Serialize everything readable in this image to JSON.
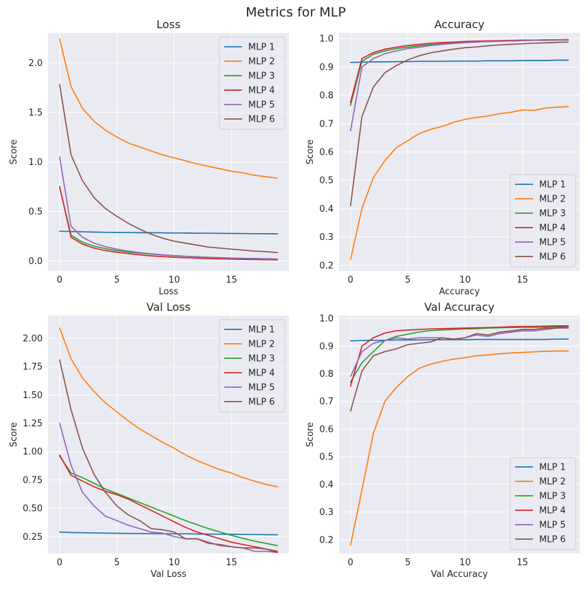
{
  "suptitle": "Metrics for MLP",
  "colors": {
    "plot_bg": "#eaeaf2",
    "grid": "#ffffff",
    "series": [
      "#1f77b4",
      "#ff7f0e",
      "#2ca02c",
      "#d62728",
      "#9467bd",
      "#8c564b"
    ]
  },
  "chart_data": [
    {
      "type": "line",
      "title": "Loss",
      "xlabel": "Loss",
      "ylabel": "Score",
      "xlim": [
        -1,
        20
      ],
      "ylim": [
        -0.1,
        2.3
      ],
      "xticks": [
        0,
        5,
        10,
        15
      ],
      "yticks": [
        0.0,
        0.5,
        1.0,
        1.5,
        2.0
      ],
      "ytick_labels": [
        "0.0",
        "0.5",
        "1.0",
        "1.5",
        "2.0"
      ],
      "legend_loc": "top-right",
      "x": [
        0,
        1,
        2,
        3,
        4,
        5,
        6,
        7,
        8,
        9,
        10,
        11,
        12,
        13,
        14,
        15,
        16,
        17,
        18,
        19
      ],
      "series": [
        {
          "name": "MLP 1",
          "values": [
            0.3,
            0.298,
            0.295,
            0.292,
            0.29,
            0.288,
            0.287,
            0.286,
            0.285,
            0.284,
            0.283,
            0.282,
            0.281,
            0.28,
            0.279,
            0.278,
            0.277,
            0.276,
            0.275,
            0.274
          ]
        },
        {
          "name": "MLP 2",
          "values": [
            2.24,
            1.76,
            1.54,
            1.41,
            1.32,
            1.25,
            1.19,
            1.15,
            1.11,
            1.07,
            1.04,
            1.01,
            0.98,
            0.955,
            0.93,
            0.905,
            0.89,
            0.865,
            0.85,
            0.835
          ]
        },
        {
          "name": "MLP 3",
          "values": [
            0.75,
            0.26,
            0.19,
            0.15,
            0.125,
            0.105,
            0.09,
            0.08,
            0.07,
            0.06,
            0.053,
            0.047,
            0.042,
            0.037,
            0.033,
            0.03,
            0.027,
            0.025,
            0.022,
            0.02
          ]
        },
        {
          "name": "MLP 4",
          "values": [
            0.75,
            0.24,
            0.17,
            0.13,
            0.105,
            0.088,
            0.075,
            0.062,
            0.052,
            0.044,
            0.038,
            0.033,
            0.029,
            0.025,
            0.022,
            0.019,
            0.017,
            0.015,
            0.013,
            0.012
          ]
        },
        {
          "name": "MLP 5",
          "values": [
            1.05,
            0.35,
            0.24,
            0.18,
            0.145,
            0.12,
            0.1,
            0.085,
            0.073,
            0.063,
            0.055,
            0.048,
            0.042,
            0.037,
            0.033,
            0.029,
            0.026,
            0.024,
            0.022,
            0.02
          ]
        },
        {
          "name": "MLP 6",
          "values": [
            1.78,
            1.07,
            0.81,
            0.64,
            0.53,
            0.45,
            0.38,
            0.32,
            0.27,
            0.23,
            0.2,
            0.18,
            0.16,
            0.14,
            0.13,
            0.12,
            0.11,
            0.1,
            0.095,
            0.085
          ]
        }
      ]
    },
    {
      "type": "line",
      "title": "Accuracy",
      "xlabel": "Accuracy",
      "ylabel": "Score",
      "xlim": [
        -1,
        20
      ],
      "ylim": [
        0.18,
        1.02
      ],
      "xticks": [
        0,
        5,
        10,
        15
      ],
      "yticks": [
        0.2,
        0.3,
        0.4,
        0.5,
        0.6,
        0.7,
        0.8,
        0.9,
        1.0
      ],
      "ytick_labels": [
        "0.2",
        "0.3",
        "0.4",
        "0.5",
        "0.6",
        "0.7",
        "0.8",
        "0.9",
        "1.0"
      ],
      "legend_loc": "bottom-right",
      "x": [
        0,
        1,
        2,
        3,
        4,
        5,
        6,
        7,
        8,
        9,
        10,
        11,
        12,
        13,
        14,
        15,
        16,
        17,
        18,
        19
      ],
      "series": [
        {
          "name": "MLP 1",
          "values": [
            0.916,
            0.917,
            0.918,
            0.918,
            0.919,
            0.919,
            0.92,
            0.92,
            0.92,
            0.921,
            0.921,
            0.921,
            0.922,
            0.922,
            0.922,
            0.923,
            0.923,
            0.923,
            0.924,
            0.924
          ]
        },
        {
          "name": "MLP 2",
          "values": [
            0.22,
            0.4,
            0.51,
            0.57,
            0.615,
            0.64,
            0.665,
            0.68,
            0.69,
            0.705,
            0.715,
            0.722,
            0.727,
            0.735,
            0.74,
            0.748,
            0.747,
            0.755,
            0.758,
            0.76
          ]
        },
        {
          "name": "MLP 3",
          "values": [
            0.765,
            0.92,
            0.945,
            0.957,
            0.965,
            0.97,
            0.975,
            0.979,
            0.982,
            0.985,
            0.987,
            0.989,
            0.99,
            0.991,
            0.992,
            0.993,
            0.994,
            0.994,
            0.995,
            0.995
          ]
        },
        {
          "name": "MLP 4",
          "values": [
            0.775,
            0.93,
            0.951,
            0.963,
            0.97,
            0.976,
            0.98,
            0.984,
            0.986,
            0.988,
            0.99,
            0.991,
            0.992,
            0.993,
            0.994,
            0.995,
            0.995,
            0.996,
            0.996,
            0.997
          ]
        },
        {
          "name": "MLP 5",
          "values": [
            0.675,
            0.9,
            0.93,
            0.947,
            0.957,
            0.965,
            0.97,
            0.976,
            0.98,
            0.983,
            0.986,
            0.988,
            0.99,
            0.991,
            0.992,
            0.993,
            0.994,
            0.995,
            0.995,
            0.996
          ]
        },
        {
          "name": "MLP 6",
          "values": [
            0.41,
            0.725,
            0.83,
            0.88,
            0.905,
            0.925,
            0.94,
            0.95,
            0.957,
            0.963,
            0.968,
            0.971,
            0.975,
            0.978,
            0.98,
            0.982,
            0.984,
            0.985,
            0.987,
            0.988
          ]
        }
      ]
    },
    {
      "type": "line",
      "title": "Val Loss",
      "xlabel": "Val Loss",
      "ylabel": "Score",
      "xlim": [
        -1,
        20
      ],
      "ylim": [
        0.1,
        2.2
      ],
      "xticks": [
        0,
        5,
        10,
        15
      ],
      "yticks": [
        0.25,
        0.5,
        0.75,
        1.0,
        1.25,
        1.5,
        1.75,
        2.0
      ],
      "ytick_labels": [
        "0.25",
        "0.50",
        "0.75",
        "1.00",
        "1.25",
        "1.50",
        "1.75",
        "2.00"
      ],
      "legend_loc": "top-right",
      "x": [
        0,
        1,
        2,
        3,
        4,
        5,
        6,
        7,
        8,
        9,
        10,
        11,
        12,
        13,
        14,
        15,
        16,
        17,
        18,
        19
      ],
      "series": [
        {
          "name": "MLP 1",
          "values": [
            0.29,
            0.286,
            0.284,
            0.282,
            0.28,
            0.279,
            0.278,
            0.277,
            0.276,
            0.275,
            0.274,
            0.274,
            0.273,
            0.272,
            0.271,
            0.27,
            0.269,
            0.268,
            0.267,
            0.266
          ]
        },
        {
          "name": "MLP 2",
          "values": [
            2.09,
            1.82,
            1.65,
            1.53,
            1.43,
            1.35,
            1.27,
            1.2,
            1.14,
            1.08,
            1.03,
            0.97,
            0.92,
            0.88,
            0.84,
            0.81,
            0.77,
            0.74,
            0.71,
            0.69
          ]
        },
        {
          "name": "MLP 3",
          "values": [
            0.96,
            0.81,
            0.77,
            0.72,
            0.67,
            0.63,
            0.59,
            0.55,
            0.51,
            0.47,
            0.43,
            0.39,
            0.355,
            0.32,
            0.29,
            0.26,
            0.235,
            0.21,
            0.19,
            0.17
          ]
        },
        {
          "name": "MLP 4",
          "values": [
            0.97,
            0.79,
            0.74,
            0.69,
            0.65,
            0.62,
            0.58,
            0.53,
            0.48,
            0.43,
            0.38,
            0.33,
            0.29,
            0.26,
            0.23,
            0.2,
            0.18,
            0.16,
            0.14,
            0.12
          ]
        },
        {
          "name": "MLP 5",
          "values": [
            1.25,
            0.88,
            0.64,
            0.52,
            0.43,
            0.39,
            0.35,
            0.32,
            0.29,
            0.28,
            0.25,
            0.23,
            0.23,
            0.2,
            0.17,
            0.16,
            0.15,
            0.12,
            0.12,
            0.11
          ]
        },
        {
          "name": "MLP 6",
          "values": [
            1.81,
            1.37,
            1.03,
            0.8,
            0.64,
            0.52,
            0.44,
            0.39,
            0.32,
            0.31,
            0.29,
            0.23,
            0.23,
            0.19,
            0.18,
            0.16,
            0.15,
            0.15,
            0.14,
            0.11
          ]
        }
      ]
    },
    {
      "type": "line",
      "title": "Val Accuracy",
      "xlabel": "Val Accuracy",
      "ylabel": "Score",
      "xlim": [
        -1,
        20
      ],
      "ylim": [
        0.15,
        1.01
      ],
      "xticks": [
        0,
        5,
        10,
        15
      ],
      "yticks": [
        0.2,
        0.3,
        0.4,
        0.5,
        0.6,
        0.7,
        0.8,
        0.9,
        1.0
      ],
      "ytick_labels": [
        "0.2",
        "0.3",
        "0.4",
        "0.5",
        "0.6",
        "0.7",
        "0.8",
        "0.9",
        "1.0"
      ],
      "legend_loc": "bottom-right",
      "x": [
        0,
        1,
        2,
        3,
        4,
        5,
        6,
        7,
        8,
        9,
        10,
        11,
        12,
        13,
        14,
        15,
        16,
        17,
        18,
        19
      ],
      "series": [
        {
          "name": "MLP 1",
          "values": [
            0.919,
            0.92,
            0.921,
            0.921,
            0.922,
            0.922,
            0.922,
            0.923,
            0.923,
            0.923,
            0.923,
            0.924,
            0.924,
            0.924,
            0.924,
            0.924,
            0.924,
            0.924,
            0.925,
            0.925
          ]
        },
        {
          "name": "MLP 2",
          "values": [
            0.18,
            0.38,
            0.585,
            0.7,
            0.75,
            0.79,
            0.82,
            0.835,
            0.845,
            0.853,
            0.858,
            0.865,
            0.868,
            0.872,
            0.875,
            0.877,
            0.879,
            0.881,
            0.882,
            0.882
          ]
        },
        {
          "name": "MLP 3",
          "values": [
            0.77,
            0.84,
            0.88,
            0.92,
            0.935,
            0.943,
            0.951,
            0.956,
            0.958,
            0.96,
            0.962,
            0.963,
            0.965,
            0.966,
            0.967,
            0.968,
            0.968,
            0.969,
            0.97,
            0.97
          ]
        },
        {
          "name": "MLP 4",
          "values": [
            0.755,
            0.9,
            0.93,
            0.947,
            0.955,
            0.958,
            0.96,
            0.962,
            0.963,
            0.964,
            0.965,
            0.966,
            0.967,
            0.968,
            0.97,
            0.971,
            0.971,
            0.972,
            0.973,
            0.973
          ]
        },
        {
          "name": "MLP 5",
          "values": [
            0.79,
            0.88,
            0.91,
            0.92,
            0.93,
            0.925,
            0.93,
            0.93,
            0.93,
            0.925,
            0.93,
            0.94,
            0.935,
            0.945,
            0.95,
            0.955,
            0.955,
            0.96,
            0.965,
            0.965
          ]
        },
        {
          "name": "MLP 6",
          "values": [
            0.665,
            0.81,
            0.865,
            0.88,
            0.89,
            0.905,
            0.91,
            0.915,
            0.93,
            0.925,
            0.93,
            0.945,
            0.94,
            0.95,
            0.955,
            0.96,
            0.96,
            0.965,
            0.965,
            0.97
          ]
        }
      ]
    }
  ]
}
